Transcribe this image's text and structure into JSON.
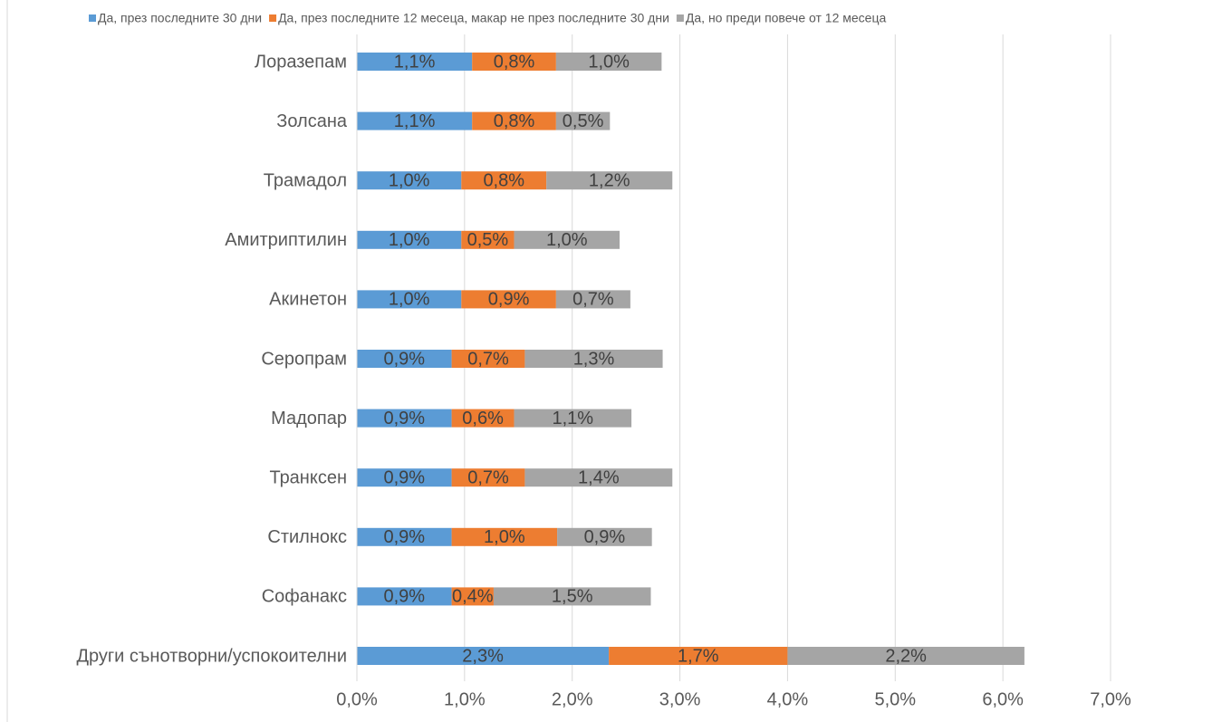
{
  "chart_data": {
    "type": "stacked_bar_horizontal",
    "categories": [
      "Лоразепам",
      "Золсана",
      "Трамадол",
      "Амитриптилин",
      "Акинетон",
      "Серопрам",
      "Мадопар",
      "Транксен",
      "Стилнокс",
      "Софанакс",
      "Други сънотворни/успокоителни"
    ],
    "series": [
      {
        "name": "Да, през последните 30 дни",
        "color": "#5b9bd5",
        "values": [
          1.07,
          1.07,
          0.97,
          0.97,
          0.97,
          0.88,
          0.88,
          0.88,
          0.88,
          0.88,
          2.34
        ],
        "value_labels": [
          "1,1%",
          "1,1%",
          "1,0%",
          "1,0%",
          "1,0%",
          "0,9%",
          "0,9%",
          "0,9%",
          "0,9%",
          "0,9%",
          "2,3%"
        ]
      },
      {
        "name": "Да, през последните 12 месеца, макар не през последните 30 дни",
        "color": "#ed7d31",
        "values": [
          0.78,
          0.78,
          0.79,
          0.49,
          0.88,
          0.68,
          0.58,
          0.68,
          0.98,
          0.39,
          1.66
        ],
        "value_labels": [
          "0,8%",
          "0,8%",
          "0,8%",
          "0,5%",
          "0,9%",
          "0,7%",
          "0,6%",
          "0,7%",
          "1,0%",
          "0,4%",
          "1,7%"
        ]
      },
      {
        "name": "Да, но преди повече от 12 месеца",
        "color": "#a5a5a5",
        "values": [
          0.98,
          0.5,
          1.17,
          0.98,
          0.69,
          1.28,
          1.09,
          1.37,
          0.88,
          1.46,
          2.2
        ],
        "value_labels": [
          "1,0%",
          "0,5%",
          "1,2%",
          "1,0%",
          "0,7%",
          "1,3%",
          "1,1%",
          "1,4%",
          "0,9%",
          "1,5%",
          "2,2%"
        ]
      }
    ],
    "xlim": [
      0,
      7
    ],
    "xticks": [
      {
        "value": 0,
        "label": "0,0%"
      },
      {
        "value": 1,
        "label": "1,0%"
      },
      {
        "value": 2,
        "label": "2,0%"
      },
      {
        "value": 3,
        "label": "3,0%"
      },
      {
        "value": 4,
        "label": "4,0%"
      },
      {
        "value": 5,
        "label": "5,0%"
      },
      {
        "value": 6,
        "label": "6,0%"
      },
      {
        "value": 7,
        "label": "7,0%"
      }
    ],
    "grid": true,
    "legend": "top"
  }
}
